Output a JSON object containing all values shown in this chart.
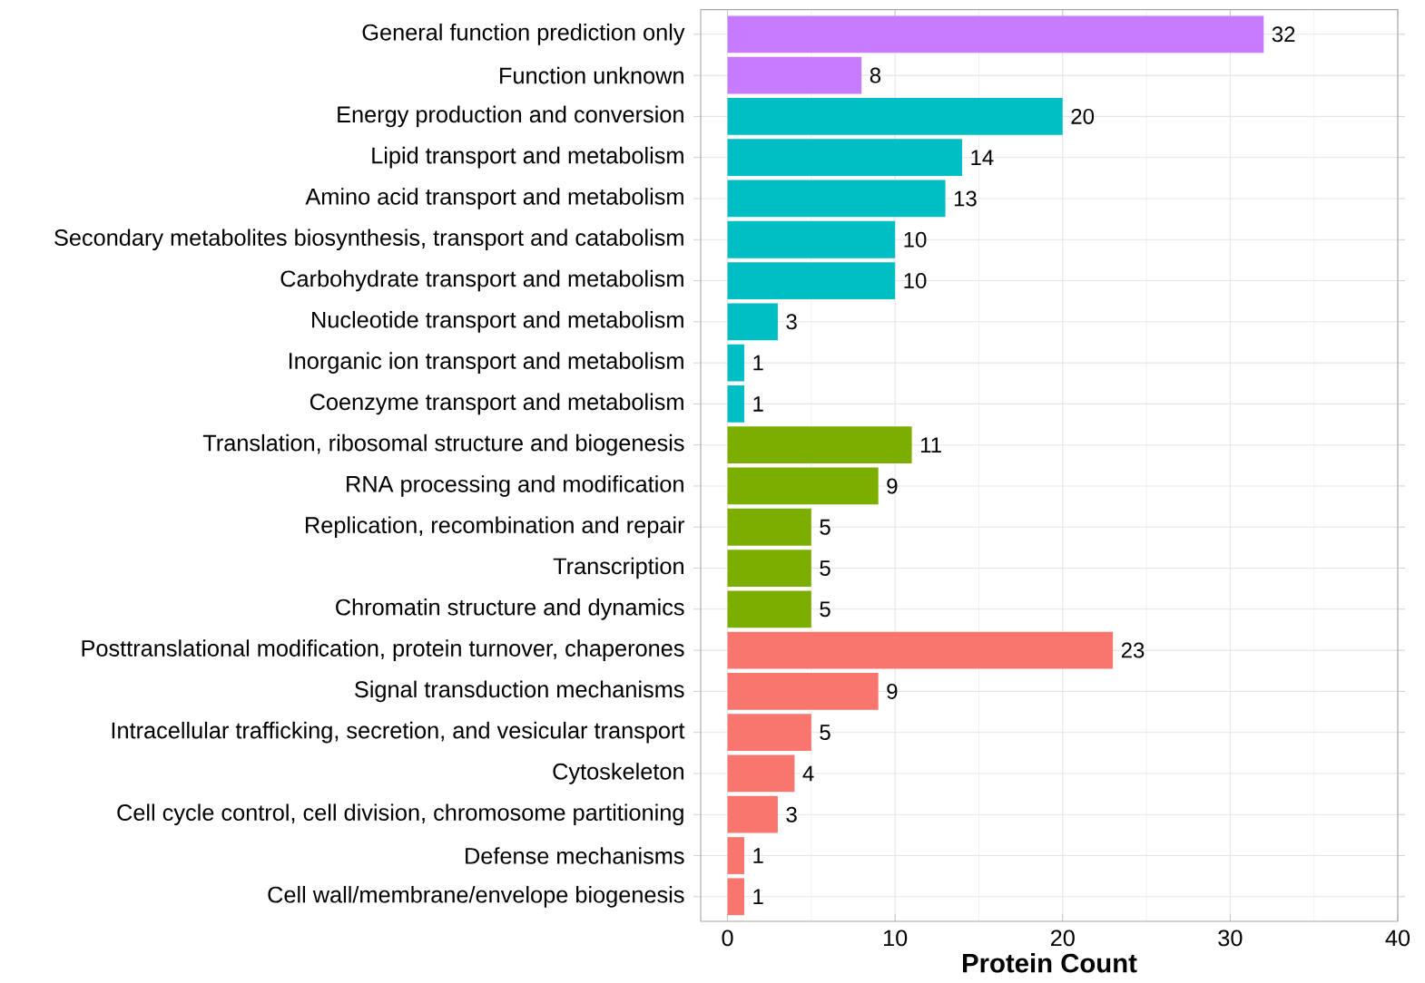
{
  "chart_data": {
    "type": "bar",
    "orientation": "horizontal",
    "xlabel": "Protein Count",
    "categories": [
      "General function prediction only",
      "Function unknown",
      "Energy production and conversion",
      "Lipid transport and metabolism",
      "Amino acid transport and metabolism",
      "Secondary metabolites biosynthesis, transport and catabolism",
      "Carbohydrate transport and metabolism",
      "Nucleotide transport and metabolism",
      "Inorganic ion transport and metabolism",
      "Coenzyme transport and metabolism",
      "Translation, ribosomal structure and biogenesis",
      "RNA processing and modification",
      "Replication, recombination and repair",
      "Transcription",
      "Chromatin structure and dynamics",
      "Posttranslational modification, protein turnover, chaperones",
      "Signal transduction mechanisms",
      "Intracellular trafficking, secretion, and vesicular transport",
      "Cytoskeleton",
      "Cell cycle control, cell division, chromosome partitioning",
      "Defense mechanisms",
      "Cell wall/membrane/envelope biogenesis"
    ],
    "values": [
      32,
      8,
      20,
      14,
      13,
      10,
      10,
      3,
      1,
      1,
      11,
      9,
      5,
      5,
      5,
      23,
      9,
      5,
      4,
      3,
      1,
      1
    ],
    "colors": [
      "#c77cff",
      "#c77cff",
      "#00bfc4",
      "#00bfc4",
      "#00bfc4",
      "#00bfc4",
      "#00bfc4",
      "#00bfc4",
      "#00bfc4",
      "#00bfc4",
      "#7cae00",
      "#7cae00",
      "#7cae00",
      "#7cae00",
      "#7cae00",
      "#f8766d",
      "#f8766d",
      "#f8766d",
      "#f8766d",
      "#f8766d",
      "#f8766d",
      "#f8766d"
    ],
    "xlim": [
      -1.6,
      40
    ],
    "xticks": [
      0,
      10,
      20,
      30,
      40
    ],
    "grid": true,
    "data_labels": true
  }
}
